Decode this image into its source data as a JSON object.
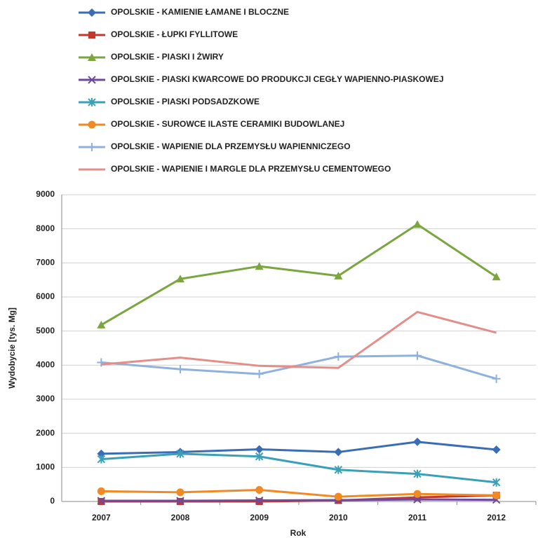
{
  "chart_data": {
    "type": "line",
    "x_label": "Rok",
    "y_label": "Wydobycie [tys. Mg]",
    "categories": [
      "2007",
      "2008",
      "2009",
      "2010",
      "2011",
      "2012"
    ],
    "ylim": [
      0,
      9000
    ],
    "yticks": [
      0,
      1000,
      2000,
      3000,
      4000,
      5000,
      6000,
      7000,
      8000,
      9000
    ],
    "grid": true,
    "legend": "top",
    "series": [
      {
        "name": "OPOLSKIE - KAMIENIE ŁAMANE I BLOCZNE",
        "color": "#3a6db5",
        "marker": "diamond",
        "values": [
          1400,
          1450,
          1530,
          1450,
          1750,
          1520
        ]
      },
      {
        "name": "OPOLSKIE - ŁUPKI FYLLITOWE",
        "color": "#c0392b",
        "marker": "square",
        "values": [
          0,
          0,
          0,
          30,
          120,
          180
        ]
      },
      {
        "name": "OPOLSKIE - PIASKI I ŻWIRY",
        "color": "#7aa63f",
        "marker": "triangle",
        "values": [
          5180,
          6530,
          6900,
          6620,
          8130,
          6590
        ]
      },
      {
        "name": "OPOLSKIE - PIASKI KWARCOWE DO PRODUKCJI CEGŁY WAPIENNO-PIASKOWEJ",
        "color": "#6f4a9c",
        "marker": "x",
        "values": [
          20,
          20,
          30,
          40,
          60,
          50
        ]
      },
      {
        "name": "OPOLSKIE - PIASKI PODSADZKOWE",
        "color": "#3aa0b8",
        "marker": "star",
        "values": [
          1240,
          1400,
          1320,
          930,
          810,
          560
        ]
      },
      {
        "name": "OPOLSKIE - SUROWCE ILASTE CERAMIKI BUDOWLANEJ",
        "color": "#f08a24",
        "marker": "circle",
        "values": [
          300,
          270,
          340,
          140,
          220,
          180
        ]
      },
      {
        "name": "OPOLSKIE - WAPIENIE DLA PRZEMYSŁU WAPIENNICZEGO",
        "color": "#8fb1de",
        "marker": "plus",
        "values": [
          4080,
          3880,
          3740,
          4250,
          4280,
          3600
        ]
      },
      {
        "name": "OPOLSKIE - WAPIENIE I MARGLE DLA PRZEMYSŁU CEMENTOWEGO",
        "color": "#e38e88",
        "marker": "none",
        "values": [
          4020,
          4220,
          3980,
          3920,
          5560,
          4950
        ]
      }
    ]
  }
}
